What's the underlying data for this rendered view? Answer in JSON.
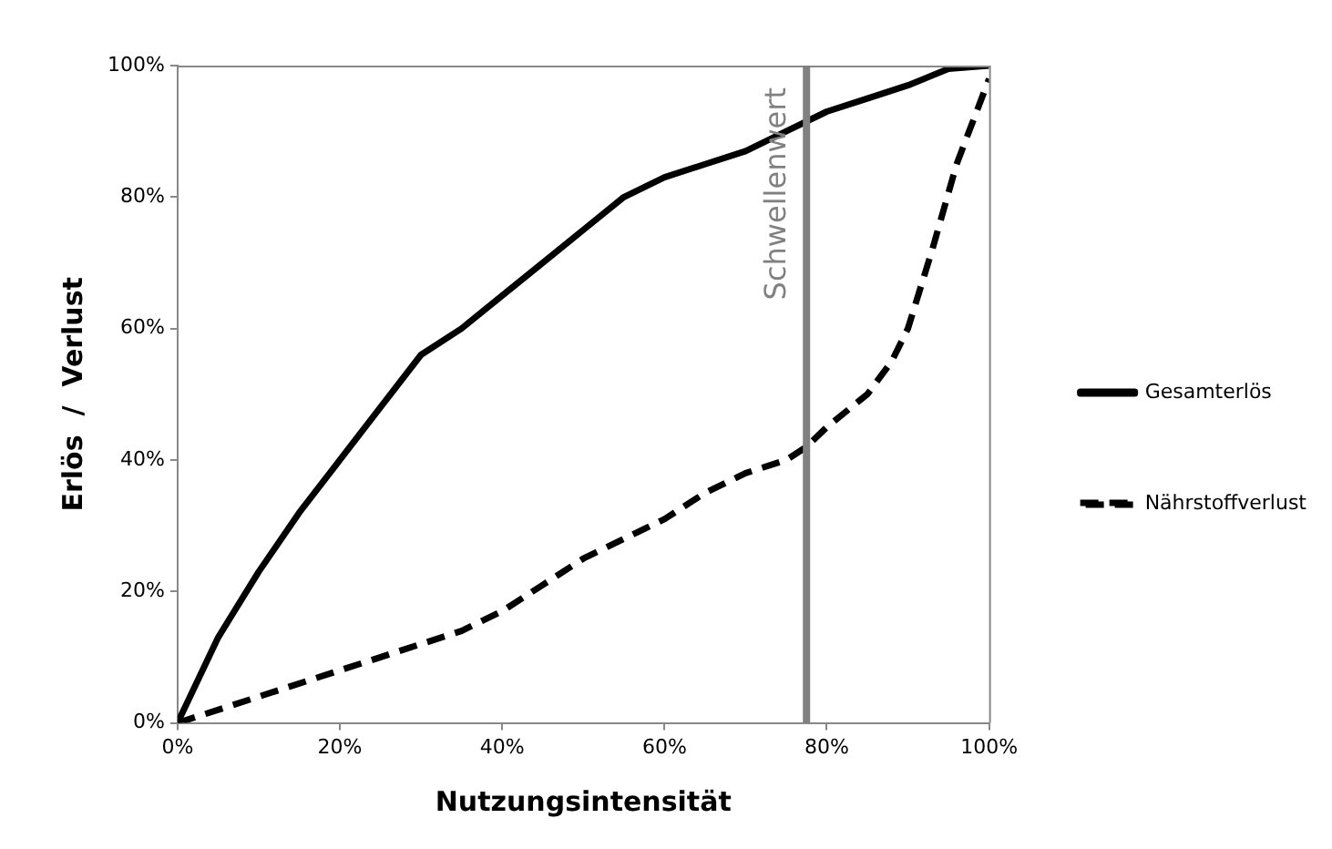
{
  "chart_data": {
    "type": "line",
    "xlabel": "Nutzungsintensität",
    "ylabel": "Erlös  /  Verlust",
    "xlim": [
      0,
      100
    ],
    "xticks": [
      {
        "value": 0,
        "label": "0%"
      },
      {
        "value": 20,
        "label": "20%"
      },
      {
        "value": 40,
        "label": "40%"
      },
      {
        "value": 60,
        "label": "60%"
      },
      {
        "value": 80,
        "label": "80%"
      },
      {
        "value": 100,
        "label": "100%"
      }
    ],
    "ylim": [
      0,
      100
    ],
    "yticks": [
      {
        "value": 0,
        "label": "0%"
      },
      {
        "value": 20,
        "label": "20%"
      },
      {
        "value": 40,
        "label": "40%"
      },
      {
        "value": 60,
        "label": "60%"
      },
      {
        "value": 80,
        "label": "80%"
      },
      {
        "value": 100,
        "label": "100%"
      }
    ],
    "grid": false,
    "legend": "right",
    "marker": "none",
    "ref_lines": [
      {
        "axis": "x",
        "value": 77.5,
        "label": "Schwellenwert",
        "color": "#808080"
      }
    ],
    "series": [
      {
        "name": "Gesamterlös",
        "color": "#000000",
        "line_style": "solid",
        "x": [
          0,
          5,
          10,
          15,
          20,
          25,
          30,
          35,
          40,
          45,
          50,
          55,
          60,
          65,
          70,
          75,
          80,
          85,
          90,
          95,
          100
        ],
        "values": [
          0,
          13,
          23,
          32,
          40,
          48,
          56,
          60,
          65,
          70,
          75,
          80,
          83,
          85,
          87,
          90,
          93,
          95,
          97,
          99.5,
          100
        ]
      },
      {
        "name": "Nährstoffverlust",
        "color": "#000000",
        "line_style": "dashed",
        "x": [
          0,
          10,
          20,
          30,
          35,
          40,
          45,
          50,
          55,
          60,
          65,
          70,
          75,
          77.5,
          80,
          85,
          88,
          90,
          93,
          96,
          100
        ],
        "values": [
          0,
          4,
          8,
          12,
          14,
          17,
          21,
          25,
          28,
          31,
          35,
          38,
          40,
          42,
          45,
          50,
          55,
          60,
          72,
          85,
          98
        ]
      }
    ]
  }
}
